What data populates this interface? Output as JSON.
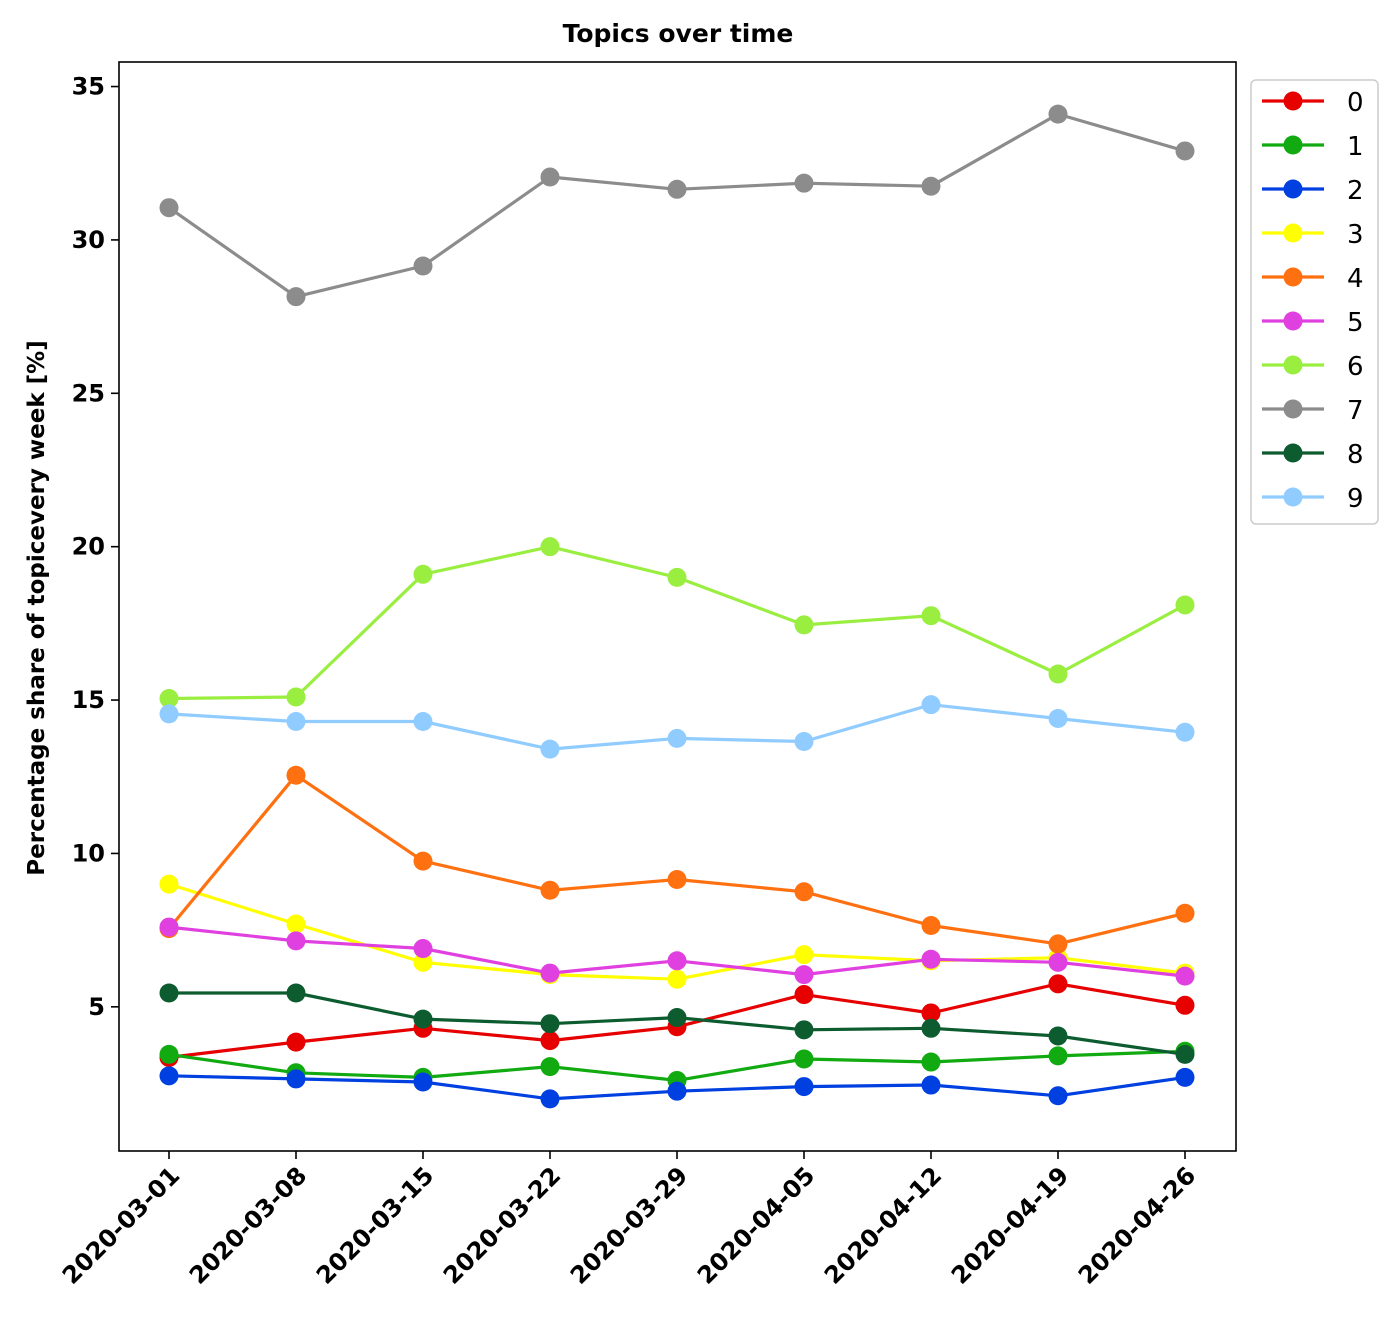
{
  "chart_data": {
    "type": "line",
    "title": "Topics over time",
    "xlabel": "",
    "ylabel": "Percentage share of topicevery week [%]",
    "ylim": [
      0.3,
      35.8
    ],
    "yticks": [
      5,
      10,
      15,
      20,
      25,
      30,
      35
    ],
    "grid": false,
    "legend_position": "outside-top-right",
    "categories": [
      "2020-03-01",
      "2020-03-08",
      "2020-03-15",
      "2020-03-22",
      "2020-03-29",
      "2020-04-05",
      "2020-04-12",
      "2020-04-19",
      "2020-04-26"
    ],
    "series": [
      {
        "name": "0",
        "color": "#e60000",
        "values": [
          3.35,
          3.85,
          4.3,
          3.9,
          4.35,
          5.4,
          4.8,
          5.75,
          5.05
        ]
      },
      {
        "name": "1",
        "color": "#11aa11",
        "values": [
          3.45,
          2.85,
          2.7,
          3.05,
          2.6,
          3.3,
          3.2,
          3.4,
          3.55
        ]
      },
      {
        "name": "2",
        "color": "#0040e0",
        "values": [
          2.75,
          2.65,
          2.55,
          2.0,
          2.25,
          2.4,
          2.45,
          2.1,
          2.7
        ]
      },
      {
        "name": "3",
        "color": "#ffff00",
        "values": [
          9.0,
          7.7,
          6.45,
          6.05,
          5.9,
          6.7,
          6.5,
          6.6,
          6.1
        ]
      },
      {
        "name": "4",
        "color": "#ff7010",
        "values": [
          7.55,
          12.55,
          9.75,
          8.8,
          9.15,
          8.75,
          7.65,
          7.05,
          8.05
        ]
      },
      {
        "name": "5",
        "color": "#e040e0",
        "values": [
          7.6,
          7.15,
          6.9,
          6.1,
          6.5,
          6.05,
          6.55,
          6.45,
          6.0
        ]
      },
      {
        "name": "6",
        "color": "#99ee40",
        "values": [
          15.05,
          15.1,
          19.1,
          20.0,
          19.0,
          17.45,
          17.75,
          15.85,
          18.1
        ]
      },
      {
        "name": "7",
        "color": "#8c8c8c",
        "values": [
          31.05,
          28.15,
          29.15,
          32.05,
          31.65,
          31.85,
          31.75,
          34.1,
          32.9
        ]
      },
      {
        "name": "8",
        "color": "#0d5c30",
        "values": [
          5.45,
          5.45,
          4.6,
          4.45,
          4.65,
          4.25,
          4.3,
          4.05,
          3.45
        ]
      },
      {
        "name": "9",
        "color": "#90ccff",
        "values": [
          14.55,
          14.3,
          14.3,
          13.4,
          13.75,
          13.65,
          14.85,
          14.4,
          13.95
        ]
      }
    ]
  }
}
